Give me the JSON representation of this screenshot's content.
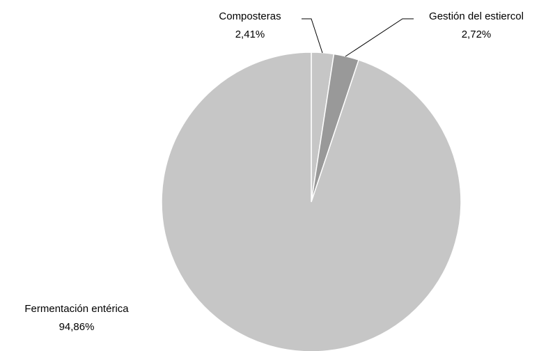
{
  "chart_data": {
    "type": "pie",
    "title": "",
    "start_angle_deg": 0,
    "direction": "clockwise",
    "slices": [
      {
        "label": "Composteras",
        "value": 2.41,
        "value_label": "2,41%",
        "color": "#c6c6c6"
      },
      {
        "label": "Gestión del estiercol",
        "value": 2.72,
        "value_label": "2,72%",
        "color": "#999999"
      },
      {
        "label": "Fermentación entérica",
        "value": 94.86,
        "value_label": "94,86%",
        "color": "#c6c6c6"
      }
    ],
    "legend": "none",
    "data_labels": "outside with leader lines"
  }
}
